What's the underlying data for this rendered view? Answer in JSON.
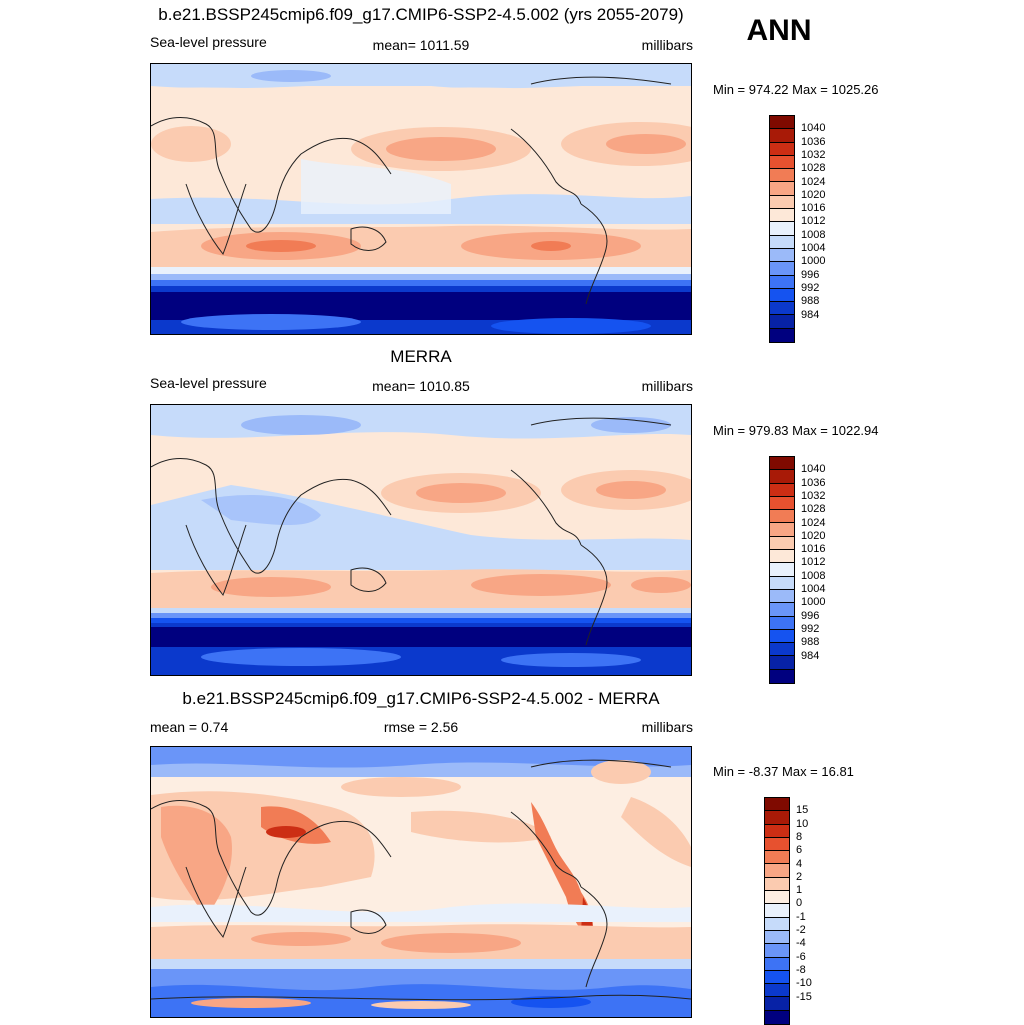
{
  "page": {
    "season": "ANN",
    "colors": {
      "coast": "#222222",
      "slp_scale": [
        "#00007f",
        "#0722a6",
        "#0b39cc",
        "#1553f0",
        "#3d73f5",
        "#6a95f8",
        "#9bbaf9",
        "#c6dbfa",
        "#e9f1fc",
        "#fde8d8",
        "#fbcbb0",
        "#f8a685",
        "#f17c55",
        "#e7512f",
        "#cc2e14",
        "#a81a07",
        "#7f0a00"
      ],
      "diff_scale": [
        "#00007f",
        "#0722a6",
        "#0b39cc",
        "#1553f0",
        "#3d73f5",
        "#6a95f8",
        "#9bbaf9",
        "#c6dbfa",
        "#e9f1fc",
        "#fdeee2",
        "#fbcbb0",
        "#f8a685",
        "#f17c55",
        "#e7512f",
        "#cc2e14",
        "#a81a07",
        "#7f0a00"
      ]
    }
  },
  "panels": [
    {
      "title": "b.e21.BSSP245cmip6.f09_g17.CMIP6-SSP2-4.5.002 (yrs 2055-2079)",
      "left": "Sea-level pressure",
      "center": "mean= 1011.59",
      "right": "millibars",
      "minmax": "Min = 974.22 Max = 1025.26",
      "legend": [
        "1040",
        "1036",
        "1032",
        "1028",
        "1024",
        "1020",
        "1016",
        "1012",
        "1008",
        "1004",
        "1000",
        "996",
        "992",
        "988",
        "984"
      ]
    },
    {
      "title": "MERRA",
      "left": "Sea-level pressure",
      "center": "mean= 1010.85",
      "right": "millibars",
      "minmax": "Min = 979.83 Max = 1022.94",
      "legend": [
        "1040",
        "1036",
        "1032",
        "1028",
        "1024",
        "1020",
        "1016",
        "1012",
        "1008",
        "1004",
        "1000",
        "996",
        "992",
        "988",
        "984"
      ]
    },
    {
      "title": "b.e21.BSSP245cmip6.f09_g17.CMIP6-SSP2-4.5.002 - MERRA",
      "left": "mean =   0.74",
      "center": "rmse =   2.56",
      "right": "millibars",
      "minmax": "Min =  -8.37 Max =  16.81",
      "legend": [
        "15",
        "10",
        "8",
        "6",
        "4",
        "2",
        "1",
        "0",
        "-1",
        "-2",
        "-4",
        "-6",
        "-8",
        "-10",
        "-15"
      ]
    }
  ]
}
